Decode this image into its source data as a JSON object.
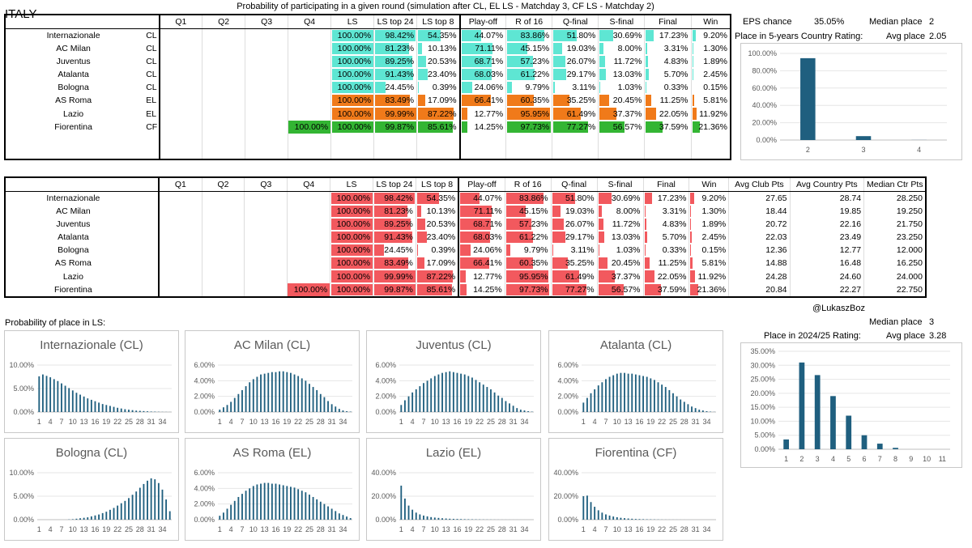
{
  "country": "ITALY",
  "table_title": "Probability of participating in a given round (simulation after CL, EL LS - Matchday 3, CF LS - Matchday 2)",
  "headers_top": [
    "Q1",
    "Q2",
    "Q3",
    "Q4",
    "LS",
    "LS top 24",
    "LS top 8",
    "Play-off",
    "R of 16",
    "Q-final",
    "S-final",
    "Final",
    "Win"
  ],
  "headers_bottom_extra": [
    "Avg Club Pts",
    "Avg Country Pts",
    "Median Ctr Pts"
  ],
  "colors": {
    "CL": "#5ee6d3",
    "EL": "#f07a1a",
    "CF": "#33b533",
    "red": "#f2595e"
  },
  "teams": [
    {
      "name": "Internazionale",
      "comp": "CL",
      "q4": "",
      "vals": [
        "100.00%",
        "98.42%",
        "54.35%",
        "44.07%",
        "83.86%",
        "51.80%",
        "30.69%",
        "17.23%",
        "9.20%"
      ],
      "pts": [
        "27.65",
        "28.74",
        "28.250"
      ]
    },
    {
      "name": "AC Milan",
      "comp": "CL",
      "q4": "",
      "vals": [
        "100.00%",
        "81.23%",
        "10.13%",
        "71.11%",
        "45.15%",
        "19.03%",
        "8.00%",
        "3.31%",
        "1.30%"
      ],
      "pts": [
        "18.44",
        "19.85",
        "19.250"
      ]
    },
    {
      "name": "Juventus",
      "comp": "CL",
      "q4": "",
      "vals": [
        "100.00%",
        "89.25%",
        "20.53%",
        "68.71%",
        "57.23%",
        "26.07%",
        "11.72%",
        "4.83%",
        "1.89%"
      ],
      "pts": [
        "20.72",
        "22.16",
        "21.750"
      ]
    },
    {
      "name": "Atalanta",
      "comp": "CL",
      "q4": "",
      "vals": [
        "100.00%",
        "91.43%",
        "23.40%",
        "68.03%",
        "61.22%",
        "29.17%",
        "13.03%",
        "5.70%",
        "2.45%"
      ],
      "pts": [
        "22.03",
        "23.49",
        "23.250"
      ]
    },
    {
      "name": "Bologna",
      "comp": "CL",
      "q4": "",
      "vals": [
        "100.00%",
        "24.45%",
        "0.39%",
        "24.06%",
        "9.79%",
        "3.11%",
        "1.03%",
        "0.33%",
        "0.15%"
      ],
      "pts": [
        "12.36",
        "12.77",
        "12.000"
      ]
    },
    {
      "name": "AS Roma",
      "comp": "EL",
      "q4": "",
      "vals": [
        "100.00%",
        "83.49%",
        "17.09%",
        "66.41%",
        "60.35%",
        "35.25%",
        "20.45%",
        "11.25%",
        "5.81%"
      ],
      "pts": [
        "14.88",
        "16.48",
        "16.250"
      ]
    },
    {
      "name": "Lazio",
      "comp": "EL",
      "q4": "",
      "vals": [
        "100.00%",
        "99.99%",
        "87.22%",
        "12.77%",
        "95.95%",
        "61.49%",
        "37.37%",
        "22.05%",
        "11.92%"
      ],
      "pts": [
        "24.28",
        "24.60",
        "24.000"
      ]
    },
    {
      "name": "Fiorentina",
      "comp": "CF",
      "q4": "100.00%",
      "vals": [
        "100.00%",
        "99.87%",
        "85.61%",
        "14.25%",
        "97.73%",
        "77.27%",
        "56.57%",
        "37.59%",
        "21.36%"
      ],
      "pts": [
        "20.84",
        "22.27",
        "22.750"
      ]
    }
  ],
  "eps": {
    "label": "EPS chance",
    "value": "35.05%",
    "median_label": "Median place",
    "median_value": "2",
    "place_label": "Place in 5-years Country  Rating:",
    "avg_label": "Avg place",
    "avg_value": "2.05"
  },
  "handle": "@LukaszBoz",
  "ls_title": "Probability of place in LS:",
  "rating": {
    "median_label": "Median place",
    "median_value": "3",
    "place_label": "Place in 2024/25  Rating:",
    "avg_label": "Avg place",
    "avg_value": "3.28"
  },
  "chart_data": [
    {
      "type": "bar",
      "title": "5-year country rating place",
      "categories": [
        "2",
        "3",
        "4"
      ],
      "values": [
        94.5,
        4.5,
        0.1
      ],
      "ylim": [
        0,
        100
      ],
      "yticks": [
        "0.00%",
        "20.00%",
        "40.00%",
        "60.00%",
        "80.00%",
        "100.00%"
      ]
    },
    {
      "type": "bar",
      "title": "2024/25 country rating place",
      "categories": [
        "1",
        "2",
        "3",
        "4",
        "5",
        "6",
        "7",
        "8",
        "9",
        "10",
        "11"
      ],
      "values": [
        3.5,
        31,
        26.5,
        19,
        12,
        5,
        2,
        0.5,
        0,
        0,
        0
      ],
      "ylim": [
        0,
        35
      ],
      "yticks": [
        "0.00%",
        "5.00%",
        "10.00%",
        "15.00%",
        "20.00%",
        "25.00%",
        "30.00%",
        "35.00%"
      ]
    },
    {
      "type": "bar",
      "title": "Internazionale (CL)",
      "ylim": [
        0,
        10
      ],
      "yticks": [
        "0.00%",
        "5.00%",
        "10.00%"
      ],
      "xticks": [
        "1",
        "4",
        "7",
        "10",
        "13",
        "16",
        "19",
        "22",
        "25",
        "28",
        "31",
        "34"
      ],
      "values": [
        7.6,
        8.0,
        7.7,
        7.4,
        7.0,
        6.6,
        6.1,
        5.6,
        5.1,
        4.6,
        4.1,
        3.7,
        3.3,
        2.9,
        2.6,
        2.3,
        2.0,
        1.7,
        1.5,
        1.3,
        1.1,
        0.9,
        0.75,
        0.6,
        0.5,
        0.4,
        0.3,
        0.25,
        0.2,
        0.15,
        0.1,
        0.08,
        0.05,
        0.03,
        0.02,
        0.01
      ]
    },
    {
      "type": "bar",
      "title": "AC Milan (CL)",
      "ylim": [
        0,
        6
      ],
      "yticks": [
        "0.00%",
        "2.00%",
        "4.00%",
        "6.00%"
      ],
      "xticks": [
        "1",
        "4",
        "7",
        "10",
        "13",
        "16",
        "19",
        "22",
        "25",
        "28",
        "31",
        "34"
      ],
      "values": [
        0.3,
        0.6,
        0.9,
        1.3,
        1.8,
        2.3,
        2.8,
        3.3,
        3.8,
        4.2,
        4.5,
        4.8,
        4.9,
        5.0,
        5.1,
        5.1,
        5.2,
        5.2,
        5.1,
        5.0,
        4.8,
        4.6,
        4.3,
        4.0,
        3.6,
        3.2,
        2.8,
        2.3,
        1.9,
        1.4,
        1.0,
        0.7,
        0.4,
        0.2,
        0.1,
        0.05
      ]
    },
    {
      "type": "bar",
      "title": "Juventus (CL)",
      "ylim": [
        0,
        6
      ],
      "yticks": [
        "0.00%",
        "2.00%",
        "4.00%",
        "6.00%"
      ],
      "xticks": [
        "1",
        "4",
        "7",
        "10",
        "13",
        "16",
        "19",
        "22",
        "25",
        "28",
        "31",
        "34"
      ],
      "values": [
        0.9,
        1.5,
        2.0,
        2.5,
        2.9,
        3.3,
        3.7,
        4.0,
        4.3,
        4.6,
        4.8,
        5.0,
        5.1,
        5.2,
        5.1,
        5.0,
        4.9,
        4.8,
        4.6,
        4.4,
        4.1,
        3.8,
        3.5,
        3.2,
        2.9,
        2.5,
        2.1,
        1.8,
        1.4,
        1.1,
        0.8,
        0.5,
        0.3,
        0.2,
        0.1,
        0.05
      ]
    },
    {
      "type": "bar",
      "title": "Atalanta (CL)",
      "ylim": [
        0,
        6
      ],
      "yticks": [
        "0.00%",
        "2.00%",
        "4.00%",
        "6.00%"
      ],
      "xticks": [
        "1",
        "4",
        "7",
        "10",
        "13",
        "16",
        "19",
        "22",
        "25",
        "28",
        "31",
        "34"
      ],
      "values": [
        1.2,
        1.8,
        2.4,
        2.9,
        3.4,
        3.8,
        4.2,
        4.5,
        4.7,
        4.9,
        5.0,
        5.0,
        4.9,
        4.9,
        4.8,
        4.7,
        4.6,
        4.5,
        4.3,
        4.1,
        3.8,
        3.5,
        3.2,
        2.8,
        2.4,
        2.0,
        1.6,
        1.3,
        1.0,
        0.7,
        0.5,
        0.3,
        0.2,
        0.1,
        0.05,
        0.02
      ]
    },
    {
      "type": "bar",
      "title": "Bologna (CL)",
      "ylim": [
        0,
        10
      ],
      "yticks": [
        "0.00%",
        "5.00%",
        "10.00%"
      ],
      "xticks": [
        "1",
        "4",
        "7",
        "10",
        "13",
        "16",
        "19",
        "22",
        "25",
        "28",
        "31",
        "34"
      ],
      "values": [
        0,
        0,
        0,
        0,
        0,
        0,
        0,
        0,
        0.05,
        0.1,
        0.2,
        0.3,
        0.4,
        0.5,
        0.7,
        0.9,
        1.1,
        1.4,
        1.7,
        2.1,
        2.5,
        3.0,
        3.5,
        4.0,
        4.6,
        5.3,
        6.0,
        6.8,
        7.6,
        8.3,
        8.8,
        8.6,
        7.8,
        6.4,
        4.3,
        1.8
      ]
    },
    {
      "type": "bar",
      "title": "AS Roma (EL)",
      "ylim": [
        0,
        6
      ],
      "yticks": [
        "0.00%",
        "2.00%",
        "4.00%",
        "6.00%"
      ],
      "xticks": [
        "1",
        "4",
        "7",
        "10",
        "13",
        "16",
        "19",
        "22",
        "25",
        "28",
        "31",
        "34"
      ],
      "values": [
        0.5,
        0.9,
        1.4,
        1.9,
        2.4,
        2.9,
        3.3,
        3.7,
        4.0,
        4.3,
        4.5,
        4.6,
        4.7,
        4.7,
        4.6,
        4.6,
        4.5,
        4.4,
        4.3,
        4.2,
        4.1,
        3.9,
        3.7,
        3.5,
        3.2,
        2.9,
        2.6,
        2.3,
        2.0,
        1.7,
        1.4,
        1.1,
        0.8,
        0.6,
        0.4,
        0.2
      ]
    },
    {
      "type": "bar",
      "title": "Lazio (EL)",
      "ylim": [
        0,
        40
      ],
      "yticks": [
        "0.00%",
        "20.00%",
        "40.00%"
      ],
      "xticks": [
        "1",
        "4",
        "7",
        "10",
        "13",
        "16",
        "19",
        "22",
        "25",
        "28",
        "31",
        "34"
      ],
      "values": [
        29,
        18,
        12,
        8.5,
        6,
        4.5,
        3.5,
        2.8,
        2.2,
        1.8,
        1.5,
        1.2,
        1.0,
        0.8,
        0.7,
        0.6,
        0.5,
        0.4,
        0.35,
        0.3,
        0.25,
        0.2,
        0.15,
        0.12,
        0.1,
        0.08,
        0.06,
        0.05,
        0.04,
        0.03,
        0.02,
        0.02,
        0.01,
        0.01,
        0,
        0
      ]
    },
    {
      "type": "bar",
      "title": "Fiorentina (CF)",
      "ylim": [
        0,
        40
      ],
      "yticks": [
        "0.00%",
        "20.00%",
        "40.00%"
      ],
      "xticks": [
        "1",
        "4",
        "7",
        "10",
        "13",
        "16",
        "19",
        "22",
        "25",
        "28",
        "31",
        "34"
      ],
      "values": [
        20,
        20.5,
        15,
        11,
        8,
        6,
        4.5,
        3.5,
        2.7,
        2.1,
        1.6,
        1.3,
        1.0,
        0.8,
        0.6,
        0.5,
        0.4,
        0.3,
        0.25,
        0.2,
        0.15,
        0.1,
        0.08,
        0.06,
        0.05,
        0.04,
        0.03,
        0.02,
        0.01,
        0.01,
        0,
        0,
        0,
        0,
        0,
        0
      ]
    }
  ]
}
